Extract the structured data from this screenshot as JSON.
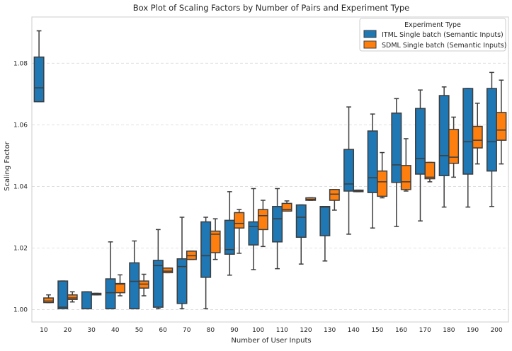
{
  "chart_data": {
    "type": "box",
    "title": "Box Plot of Scaling Factors by Number of Pairs and Experiment Type",
    "xlabel": "Number of User Inputs",
    "ylabel": "Scaling Factor",
    "ylim": [
      0.996,
      1.095
    ],
    "yticks": [
      1.0,
      1.02,
      1.04,
      1.06,
      1.08
    ],
    "ytick_labels": [
      "1.00",
      "1.02",
      "1.04",
      "1.06",
      "1.08"
    ],
    "grid": "horizontal-dashed",
    "categories": [
      "10",
      "20",
      "30",
      "40",
      "50",
      "60",
      "70",
      "80",
      "90",
      "100",
      "110",
      "120",
      "130",
      "140",
      "150",
      "160",
      "170",
      "180",
      "190",
      "200"
    ],
    "legend": {
      "title": "Experiment Type",
      "placement": "top-right"
    },
    "series": [
      {
        "name": "ITML Single batch (Semantic Inputs)",
        "color": "#1f77b4",
        "boxes": [
          {
            "q1": 1.0675,
            "median": 1.072,
            "q3": 1.082,
            "wlo": 1.0675,
            "whi": 1.0905
          },
          {
            "q1": 1.0003,
            "median": 1.0008,
            "q3": 1.0093,
            "wlo": 1.0003,
            "whi": 1.0093
          },
          {
            "q1": 1.0003,
            "median": 1.0003,
            "q3": 1.0058,
            "wlo": 1.0003,
            "whi": 1.0058
          },
          {
            "q1": 1.0003,
            "median": 1.0055,
            "q3": 1.01,
            "wlo": 1.0003,
            "whi": 1.022
          },
          {
            "q1": 1.0003,
            "median": 1.0092,
            "q3": 1.0152,
            "wlo": 1.0003,
            "whi": 1.0223
          },
          {
            "q1": 1.0008,
            "median": 1.0143,
            "q3": 1.016,
            "wlo": 1.0003,
            "whi": 1.026
          },
          {
            "q1": 1.002,
            "median": 1.014,
            "q3": 1.0165,
            "wlo": 1.0003,
            "whi": 1.03
          },
          {
            "q1": 1.0105,
            "median": 1.0175,
            "q3": 1.0285,
            "wlo": 1.0003,
            "whi": 1.03
          },
          {
            "q1": 1.018,
            "median": 1.0195,
            "q3": 1.029,
            "wlo": 1.0112,
            "whi": 1.0383
          },
          {
            "q1": 1.021,
            "median": 1.027,
            "q3": 1.0285,
            "wlo": 1.013,
            "whi": 1.0393
          },
          {
            "q1": 1.022,
            "median": 1.0295,
            "q3": 1.0335,
            "wlo": 1.0133,
            "whi": 1.0393
          },
          {
            "q1": 1.0235,
            "median": 1.03,
            "q3": 1.034,
            "wlo": 1.0148,
            "whi": 1.034
          },
          {
            "q1": 1.024,
            "median": 1.0333,
            "q3": 1.0335,
            "wlo": 1.0158,
            "whi": 1.0335
          },
          {
            "q1": 1.0385,
            "median": 1.0408,
            "q3": 1.052,
            "wlo": 1.0245,
            "whi": 1.0658
          },
          {
            "q1": 1.038,
            "median": 1.0428,
            "q3": 1.058,
            "wlo": 1.0265,
            "whi": 1.0635
          },
          {
            "q1": 1.0413,
            "median": 1.047,
            "q3": 1.0638,
            "wlo": 1.027,
            "whi": 1.0685
          },
          {
            "q1": 1.044,
            "median": 1.049,
            "q3": 1.0653,
            "wlo": 1.0288,
            "whi": 1.0713
          },
          {
            "q1": 1.0435,
            "median": 1.05,
            "q3": 1.0695,
            "wlo": 1.0333,
            "whi": 1.0723
          },
          {
            "q1": 1.044,
            "median": 1.0545,
            "q3": 1.0718,
            "wlo": 1.0333,
            "whi": 1.0718
          },
          {
            "q1": 1.045,
            "median": 1.0545,
            "q3": 1.0718,
            "wlo": 1.0335,
            "whi": 1.077
          }
        ]
      },
      {
        "name": "SDML Single batch (Semantic Inputs)",
        "color": "#ff7f0e",
        "boxes": [
          {
            "q1": 1.0023,
            "median": 1.0028,
            "q3": 1.0038,
            "wlo": 1.0023,
            "whi": 1.0048
          },
          {
            "q1": 1.0033,
            "median": 1.0038,
            "q3": 1.0048,
            "wlo": 1.0025,
            "whi": 1.0058
          },
          {
            "q1": 1.0048,
            "median": 1.005,
            "q3": 1.0053,
            "wlo": 1.0048,
            "whi": 1.0053
          },
          {
            "q1": 1.0055,
            "median": 1.0083,
            "q3": 1.0085,
            "wlo": 1.0045,
            "whi": 1.0113
          },
          {
            "q1": 1.007,
            "median": 1.0083,
            "q3": 1.0093,
            "wlo": 1.0045,
            "whi": 1.0115
          },
          {
            "q1": 1.012,
            "median": 1.0125,
            "q3": 1.0135,
            "wlo": 1.012,
            "whi": 1.0135
          },
          {
            "q1": 1.0163,
            "median": 1.0175,
            "q3": 1.019,
            "wlo": 1.0163,
            "whi": 1.019
          },
          {
            "q1": 1.0185,
            "median": 1.0245,
            "q3": 1.0255,
            "wlo": 1.0163,
            "whi": 1.0295
          },
          {
            "q1": 1.0265,
            "median": 1.028,
            "q3": 1.0315,
            "wlo": 1.0183,
            "whi": 1.0325
          },
          {
            "q1": 1.026,
            "median": 1.0305,
            "q3": 1.0325,
            "wlo": 1.0205,
            "whi": 1.0355
          },
          {
            "q1": 1.032,
            "median": 1.0325,
            "q3": 1.0345,
            "wlo": 1.032,
            "whi": 1.0353
          },
          {
            "q1": 1.0355,
            "median": 1.0358,
            "q3": 1.0363,
            "wlo": 1.0355,
            "whi": 1.0363
          },
          {
            "q1": 1.0355,
            "median": 1.0375,
            "q3": 1.039,
            "wlo": 1.0323,
            "whi": 1.039
          },
          {
            "q1": 1.0383,
            "median": 1.0385,
            "q3": 1.0388,
            "wlo": 1.0383,
            "whi": 1.0388
          },
          {
            "q1": 1.0368,
            "median": 1.0415,
            "q3": 1.045,
            "wlo": 1.0363,
            "whi": 1.051
          },
          {
            "q1": 1.039,
            "median": 1.0415,
            "q3": 1.0468,
            "wlo": 1.0385,
            "whi": 1.0555
          },
          {
            "q1": 1.0425,
            "median": 1.043,
            "q3": 1.0478,
            "wlo": 1.0415,
            "whi": 1.0478
          },
          {
            "q1": 1.0475,
            "median": 1.0495,
            "q3": 1.0585,
            "wlo": 1.043,
            "whi": 1.0625
          },
          {
            "q1": 1.0525,
            "median": 1.055,
            "q3": 1.0595,
            "wlo": 1.0473,
            "whi": 1.067
          },
          {
            "q1": 1.055,
            "median": 1.0583,
            "q3": 1.064,
            "wlo": 1.0473,
            "whi": 1.0745
          }
        ]
      }
    ]
  }
}
